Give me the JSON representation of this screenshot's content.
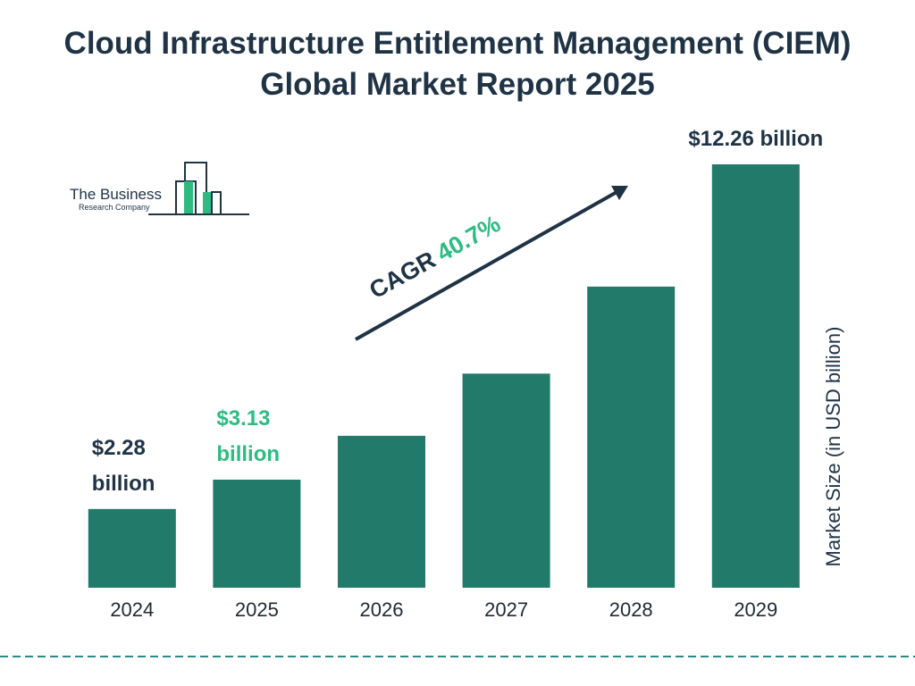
{
  "chart_data": {
    "type": "bar",
    "title": "Cloud Infrastructure Entitlement Management (CIEM) Global Market Report 2025",
    "categories": [
      "2024",
      "2025",
      "2026",
      "2027",
      "2028",
      "2029"
    ],
    "values": [
      2.28,
      3.13,
      4.4,
      6.2,
      8.72,
      12.26
    ],
    "value_labels": [
      "$2.28 billion",
      "$3.13 billion",
      null,
      null,
      null,
      "$12.26 billion"
    ],
    "value_label_colors": [
      "#1f3345",
      "#2dbb82",
      null,
      null,
      null,
      "#1f3345"
    ],
    "color": "#217a6a",
    "ylabel": "Market Size (in USD billion)",
    "cagr_label": "CAGR",
    "cagr_value": "40.7%"
  },
  "logo": {
    "line1": "The Business",
    "line2": "Research Company"
  }
}
